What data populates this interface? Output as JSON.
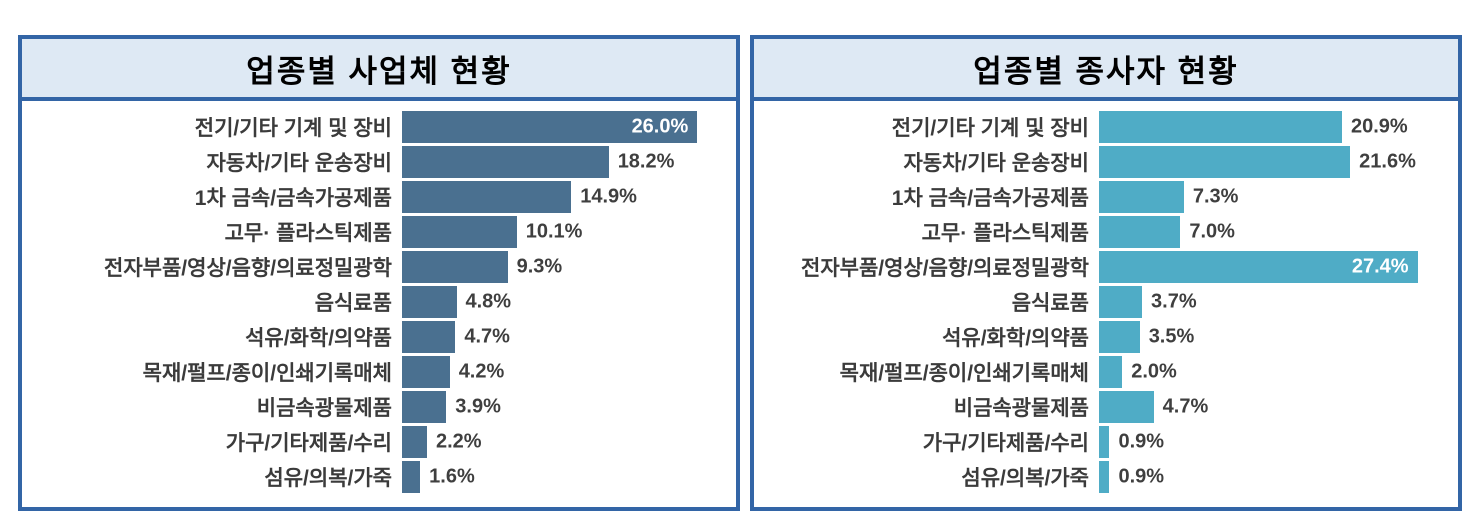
{
  "styles": {
    "panel_border_color": "#3365A6",
    "title_background": "#DEE9F4",
    "title_text_color": "#000000",
    "category_text_color": "#3B3B3B",
    "value_text_color": "#3F3F3F",
    "value_text_color_inside_bar": "#FFFFFF"
  },
  "chart_data": [
    {
      "type": "bar",
      "orientation": "horizontal",
      "title": "업종별 사업체 현황",
      "categories": [
        "전기/기타 기계 및 장비",
        "자동차/기타 운송장비",
        "1차 금속/금속가공제품",
        "고무· 플라스틱제품",
        "전자부품/영상/음향/의료정밀광학",
        "음식료품",
        "석유/화학/의약품",
        "목재/펄프/종이/인쇄기록매체",
        "비금속광물제품",
        "가구/기타제품/수리",
        "섬유/의복/가죽"
      ],
      "values": [
        26.0,
        18.2,
        14.9,
        10.1,
        9.3,
        4.8,
        4.7,
        4.2,
        3.9,
        2.2,
        1.6
      ],
      "value_labels": [
        "26.0%",
        "18.2%",
        "14.9%",
        "10.1%",
        "9.3%",
        "4.8%",
        "4.7%",
        "4.2%",
        "3.9%",
        "2.2%",
        "1.6%"
      ],
      "unit": "%",
      "xlim": [
        0,
        28
      ],
      "bar_color": "#4A7090",
      "grid": false,
      "legend": false,
      "axis_ticks_visible": false,
      "value_label_placement": "outside end of bar; longest bar labeled inside end in white"
    },
    {
      "type": "bar",
      "orientation": "horizontal",
      "title": "업종별 종사자 현황",
      "categories": [
        "전기/기타 기계 및 장비",
        "자동차/기타 운송장비",
        "1차 금속/금속가공제품",
        "고무· 플라스틱제품",
        "전자부품/영상/음향/의료정밀광학",
        "음식료품",
        "석유/화학/의약품",
        "목재/펄프/종이/인쇄기록매체",
        "비금속광물제품",
        "가구/기타제품/수리",
        "섬유/의복/가죽"
      ],
      "values": [
        20.9,
        21.6,
        7.3,
        7.0,
        27.4,
        3.7,
        3.5,
        2.0,
        4.7,
        0.9,
        0.9
      ],
      "value_labels": [
        "20.9%",
        "21.6%",
        "7.3%",
        "7.0%",
        "27.4%",
        "3.7%",
        "3.5%",
        "2.0%",
        "4.7%",
        "0.9%",
        "0.9%"
      ],
      "unit": "%",
      "xlim": [
        0,
        29.5
      ],
      "bar_color": "#4FACC6",
      "grid": false,
      "legend": false,
      "axis_ticks_visible": false,
      "value_label_placement": "outside end of bar; longest bar labeled inside end in white"
    }
  ]
}
